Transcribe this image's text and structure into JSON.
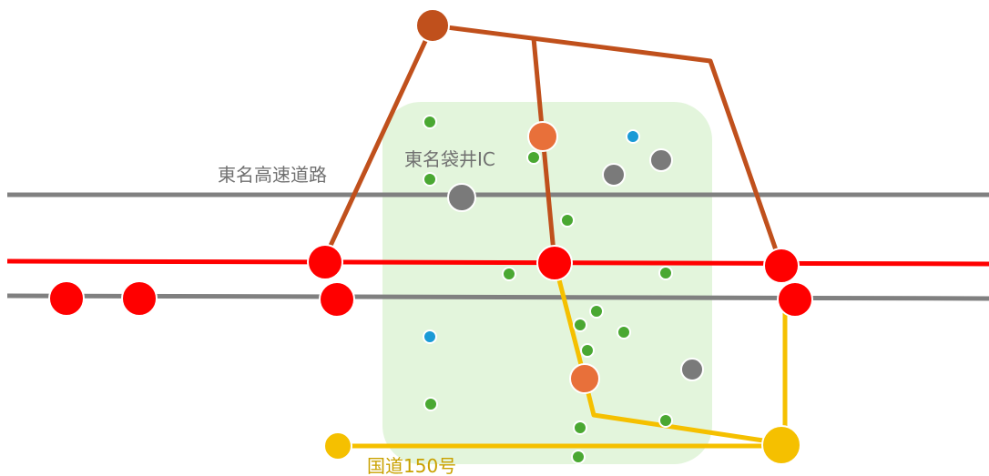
{
  "labels": {
    "expressway": "東名高速道路",
    "interchange": "東名袋井IC",
    "national_route": "国道150号"
  },
  "colors": {
    "area_fill": "#e3f5dc",
    "expressway": "#808080",
    "red_line": "#ff0000",
    "brown_line": "#c0501c",
    "yellow_line": "#f5c000",
    "red_station": "#ff0000",
    "gray_node": "#7a7a7a",
    "orange_node": "#e8703a",
    "brown_node": "#c0501c",
    "yellow_node": "#f5c000",
    "green_poi": "#4aa832",
    "blue_poi": "#1a9ad6",
    "label_gray": "#707070",
    "label_gold": "#c9a100"
  },
  "icons": {
    "poi_marker": "dot-icon",
    "station_marker": "circle-icon"
  }
}
